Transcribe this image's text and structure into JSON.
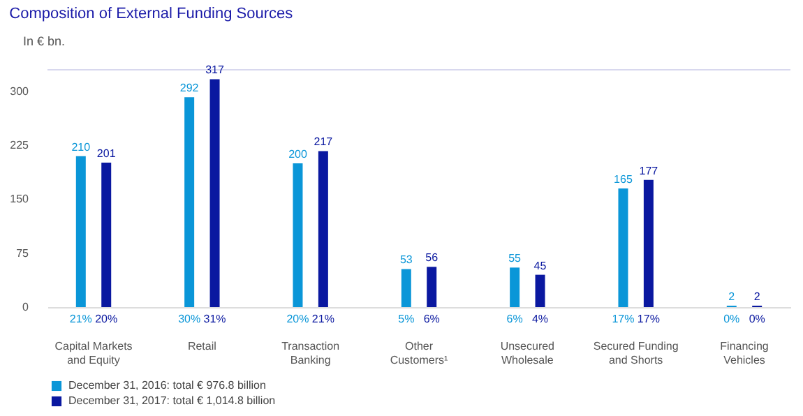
{
  "chart_data": {
    "type": "bar",
    "title": "Composition of External Funding Sources",
    "ylabel": "In € bn.",
    "categories": [
      "Capital Markets and Equity",
      "Retail",
      "Transaction Banking",
      "Other Customers¹",
      "Unsecured Wholesale",
      "Secured Funding and Shorts",
      "Financing Vehicles"
    ],
    "series": [
      {
        "name": "December 31, 2016: total € 976.8 billion",
        "color": "#0a96d8",
        "values": [
          210,
          292,
          200,
          53,
          55,
          165,
          2
        ]
      },
      {
        "name": "December 31, 2017: total € 1,014.8 billion",
        "color": "#0a18a0",
        "values": [
          201,
          317,
          217,
          56,
          45,
          177,
          2
        ]
      }
    ],
    "ylim": [
      0,
      330
    ],
    "yticks": [
      0,
      75,
      150,
      225,
      300
    ],
    "data_labels": true,
    "legend": "bottom left",
    "grid": false,
    "annotations": [
      "21%",
      "20%",
      "30%",
      "31%",
      "20%",
      "21%",
      "5%",
      "6%",
      "6%",
      "4%",
      "17%",
      "17%",
      "0%",
      "0%"
    ]
  }
}
